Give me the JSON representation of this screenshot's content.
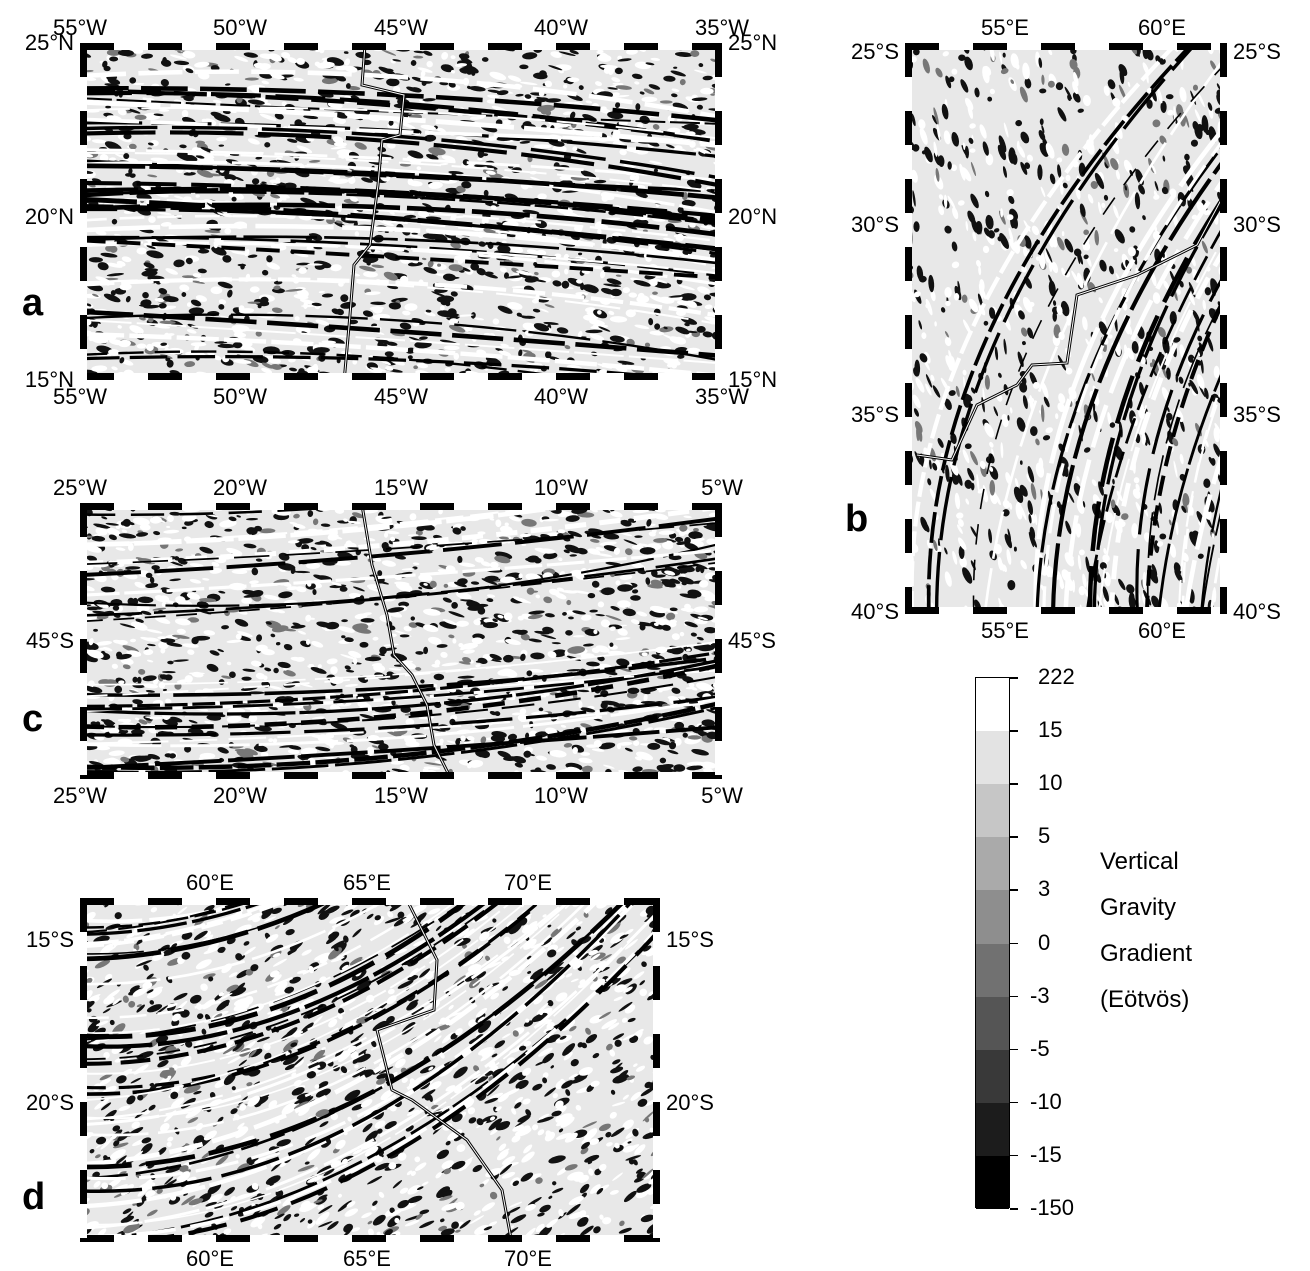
{
  "panels": {
    "a": {
      "letter": "a",
      "top_ticks": [
        "55°W",
        "50°W",
        "45°W",
        "40°W",
        "35°W"
      ],
      "bottom_ticks": [
        "55°W",
        "50°W",
        "45°W",
        "40°W",
        "35°W"
      ],
      "left_ticks": [
        "25°N",
        "20°N",
        "15°N"
      ],
      "right_ticks": [
        "25°N",
        "20°N",
        "15°N"
      ]
    },
    "b": {
      "letter": "b",
      "top_ticks": [
        "55°E",
        "60°E"
      ],
      "bottom_ticks": [
        "55°E",
        "60°E"
      ],
      "left_ticks": [
        "25°S",
        "30°S",
        "35°S",
        "40°S"
      ],
      "right_ticks": [
        "25°S",
        "30°S",
        "35°S",
        "40°S"
      ]
    },
    "c": {
      "letter": "c",
      "top_ticks": [
        "25°W",
        "20°W",
        "15°W",
        "10°W",
        "5°W"
      ],
      "bottom_ticks": [
        "25°W",
        "20°W",
        "15°W",
        "10°W",
        "5°W"
      ],
      "left_ticks": [
        "45°S"
      ],
      "right_ticks": [
        "45°S"
      ]
    },
    "d": {
      "letter": "d",
      "top_ticks": [
        "60°E",
        "65°E",
        "70°E"
      ],
      "bottom_ticks": [
        "60°E",
        "65°E",
        "70°E"
      ],
      "left_ticks": [
        "15°S",
        "20°S"
      ],
      "right_ticks": [
        "15°S",
        "20°S"
      ]
    }
  },
  "colorbar": {
    "labels": [
      "222",
      "15",
      "10",
      "5",
      "3",
      "0",
      "-3",
      "-5",
      "-10",
      "-15",
      "-150"
    ],
    "title_lines": [
      "Vertical",
      "Gravity",
      "Gradient",
      "(Eötvös)"
    ]
  },
  "colors": {
    "frame": "#000000",
    "light": "#ffffff",
    "dark": "#000000"
  }
}
